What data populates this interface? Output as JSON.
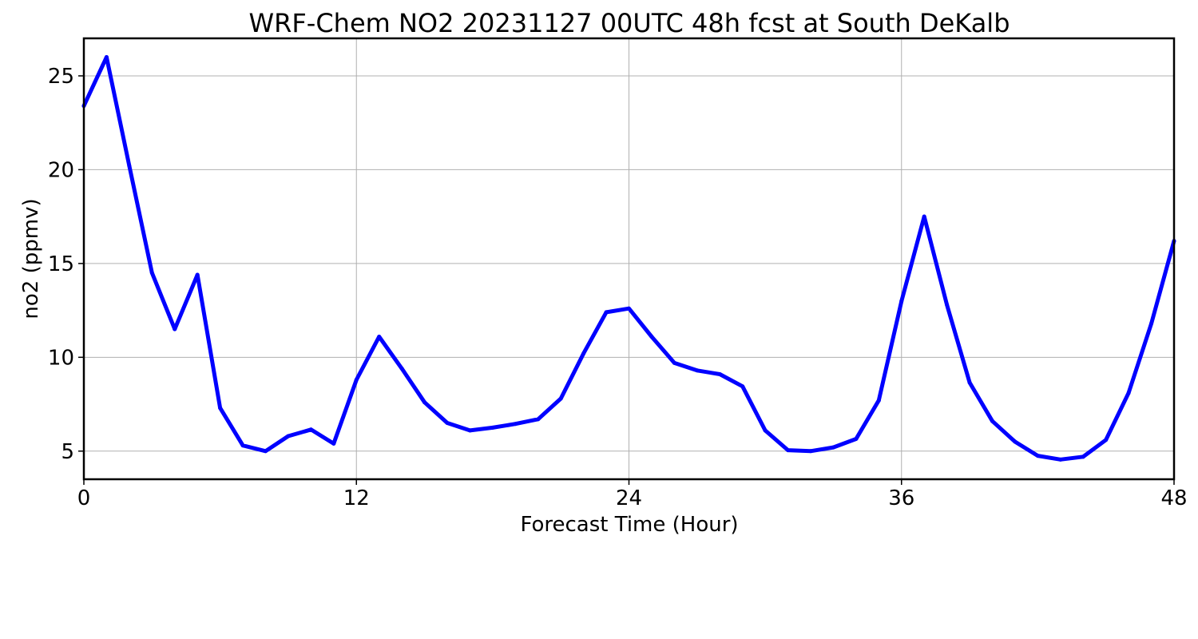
{
  "chart_data": {
    "type": "line",
    "title": "WRF-Chem NO2  20231127 00UTC 48h fcst at South DeKalb",
    "xlabel": "Forecast Time (Hour)",
    "ylabel": "no2  (ppmv)",
    "xlim": [
      0,
      48
    ],
    "ylim": [
      3.5,
      27
    ],
    "xticks": [
      0,
      12,
      24,
      36,
      48
    ],
    "yticks": [
      5,
      10,
      15,
      20,
      25
    ],
    "grid": true,
    "x": [
      0,
      1,
      2,
      3,
      4,
      5,
      6,
      7,
      8,
      9,
      10,
      11,
      12,
      13,
      14,
      15,
      16,
      17,
      18,
      19,
      20,
      21,
      22,
      23,
      24,
      25,
      26,
      27,
      28,
      29,
      30,
      31,
      32,
      33,
      34,
      35,
      36,
      37,
      38,
      39,
      40,
      41,
      42,
      43,
      44,
      45,
      46,
      47,
      48
    ],
    "series": [
      {
        "color": "#0000ff",
        "values": [
          23.4,
          26.0,
          20.2,
          14.5,
          11.5,
          14.4,
          7.3,
          5.3,
          5.0,
          5.8,
          6.15,
          5.4,
          8.8,
          11.1,
          9.4,
          7.6,
          6.5,
          6.1,
          6.25,
          6.45,
          6.7,
          7.8,
          10.2,
          12.4,
          12.6,
          11.1,
          9.7,
          9.3,
          9.1,
          8.45,
          6.1,
          5.05,
          5.0,
          5.2,
          5.65,
          7.7,
          13.0,
          17.5,
          12.8,
          8.65,
          6.6,
          5.5,
          4.75,
          4.55,
          4.7,
          5.6,
          8.1,
          11.8,
          16.2
        ]
      }
    ]
  }
}
